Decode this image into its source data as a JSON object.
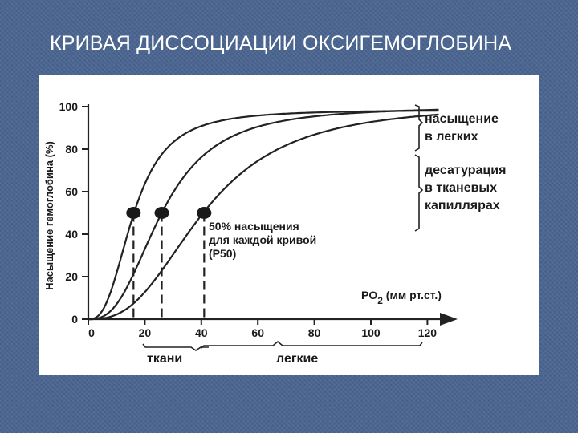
{
  "slide": {
    "title": "КРИВАЯ ДИССОЦИАЦИИ ОКСИГЕМОГЛОБИНА"
  },
  "chart_data": {
    "type": "line",
    "title": "",
    "xlabel": "PO",
    "xlabel_sub": "2",
    "xlabel_units": " (мм рт.ст.)",
    "ylabel": "Насыщение гемоглобина (%)",
    "xlim": [
      0,
      125
    ],
    "ylim": [
      0,
      100
    ],
    "x_ticks": [
      0,
      20,
      40,
      60,
      80,
      100,
      120
    ],
    "y_ticks": [
      0,
      20,
      40,
      60,
      80,
      100
    ],
    "grid": false,
    "series": [
      {
        "p50": 16,
        "n": 2.7,
        "max": 100,
        "shift": 4
      },
      {
        "p50": 26,
        "n": 2.7,
        "max": 100,
        "shift": 0
      },
      {
        "p50": 41,
        "n": 2.7,
        "max": 100,
        "shift": -3
      }
    ],
    "p50_points": [
      {
        "x": 16,
        "y": 50
      },
      {
        "x": 26,
        "y": 50
      },
      {
        "x": 41,
        "y": 50
      }
    ],
    "annotations": {
      "p50": [
        "50% насыщения",
        "для каждой кривой",
        "(P50)"
      ],
      "lungs_saturation": [
        "насыщение",
        "в легких"
      ],
      "tissue_desaturation": [
        "десатурация",
        "в тканевых",
        "капиллярах"
      ],
      "tissues": "ткани",
      "lungs": "легкие"
    }
  }
}
